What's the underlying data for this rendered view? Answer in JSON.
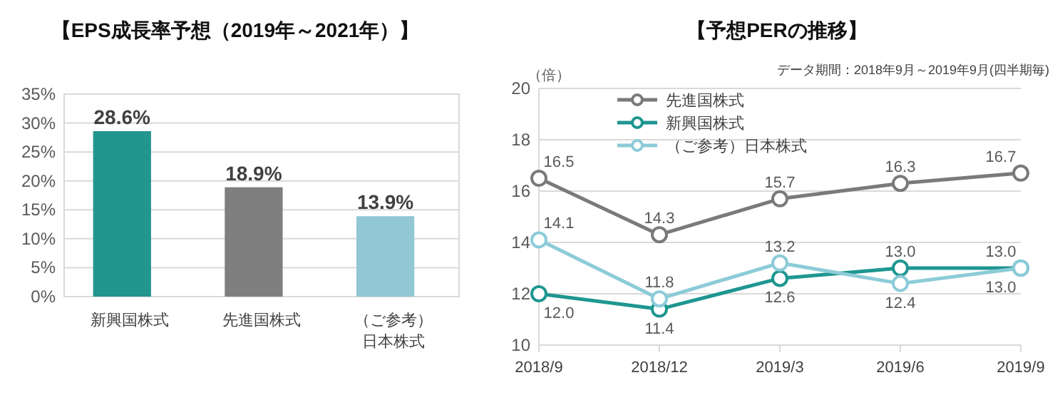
{
  "chart_data": [
    {
      "type": "bar",
      "title": "【EPS成長率予想（2019年～2021年）】",
      "categories": [
        "新興国株式",
        "先進国株式",
        "（ご参考）日本株式"
      ],
      "values": [
        28.6,
        18.9,
        13.9
      ],
      "colors": [
        "#23958f",
        "#7f7f7f",
        "#92c7d4"
      ],
      "value_labels": [
        "28.6%",
        "18.9%",
        "13.9%"
      ],
      "ylim": [
        0,
        35
      ],
      "yticks": [
        {
          "value": 0,
          "label": "0%"
        },
        {
          "value": 5,
          "label": "5%"
        },
        {
          "value": 10,
          "label": "10%"
        },
        {
          "value": 15,
          "label": "15%"
        },
        {
          "value": 20,
          "label": "20%"
        },
        {
          "value": 25,
          "label": "25%"
        },
        {
          "value": 30,
          "label": "30%"
        },
        {
          "value": 35,
          "label": "35%"
        }
      ],
      "grid": "y"
    },
    {
      "type": "line",
      "title": "【予想PERの推移】",
      "ylabel": "（倍）",
      "annotations": [
        "データ期間：2018年9月～2019年9月(四半期毎)"
      ],
      "categories": [
        "2018/9",
        "2018/12",
        "2019/3",
        "2019/6",
        "2019/9"
      ],
      "series": [
        {
          "name": "先進国株式",
          "color": "#7a7a7a",
          "values": [
            16.5,
            14.3,
            15.7,
            16.3,
            16.7
          ],
          "value_labels": [
            "16.5",
            "14.3",
            "15.7",
            "16.3",
            "16.7"
          ]
        },
        {
          "name": "新興国株式",
          "color": "#1e9690",
          "values": [
            12.0,
            11.4,
            12.6,
            13.0,
            13.0
          ],
          "value_labels": [
            "12.0",
            "11.4",
            "12.6",
            "13.0",
            "13.0"
          ]
        },
        {
          "name": "（ご参考）日本株式",
          "color": "#8ccbd8",
          "values": [
            14.1,
            11.8,
            13.2,
            12.4,
            13.0
          ],
          "value_labels": [
            "14.1",
            "11.8",
            "13.2",
            "12.4",
            "13.0"
          ]
        }
      ],
      "ylim": [
        10,
        20
      ],
      "yticks": [
        10,
        12,
        14,
        16,
        18,
        20
      ],
      "grid": "y",
      "legend": "top left",
      "marker": "circle",
      "line_style": "solid"
    }
  ]
}
